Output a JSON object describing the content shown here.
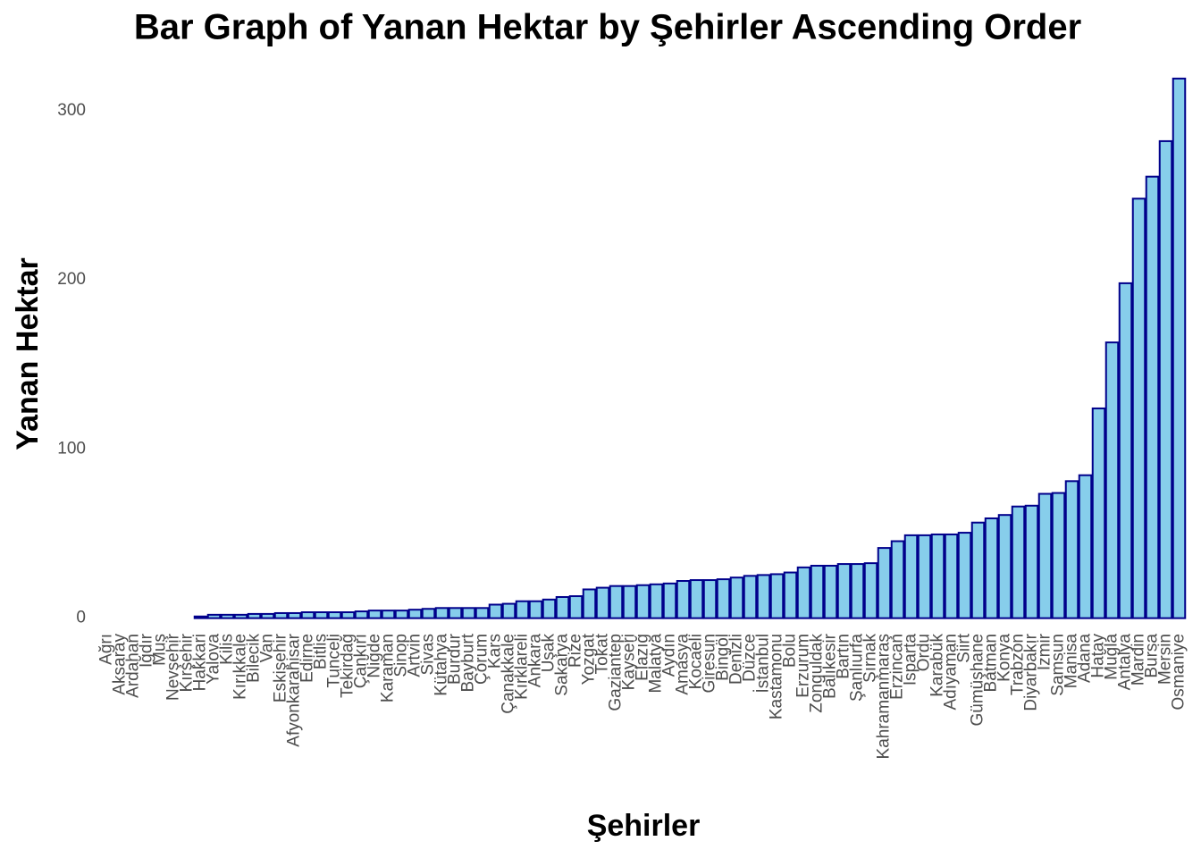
{
  "chart_data": {
    "type": "bar",
    "title": "Bar Graph of Yanan Hektar by Şehirler Ascending Order",
    "x_label": "Şehirler",
    "y_label": "Yanan Hektar",
    "categories": [
      "Ağrı",
      "Aksaray",
      "Ardahan",
      "Iğdır",
      "Muş",
      "Nevşehir",
      "Kırşehir",
      "Hakkari",
      "Yalova",
      "Kilis",
      "Kırıkkale",
      "Bilecik",
      "Van",
      "Eskişehir",
      "Afyonkarahisar",
      "Edirne",
      "Bitlis",
      "Tunceli",
      "Tekirdağ",
      "Çankırı",
      "Niğde",
      "Karaman",
      "Sinop",
      "Artvin",
      "Sivas",
      "Kütahya",
      "Burdur",
      "Bayburt",
      "Çorum",
      "Kars",
      "Çanakkale",
      "Kırklareli",
      "Ankara",
      "Uşak",
      "Sakarya",
      "Rize",
      "Yozgat",
      "Tokat",
      "Gaziantep",
      "Kayseri",
      "Elazığ",
      "Malatya",
      "Aydın",
      "Amasya",
      "Kocaeli",
      "Giresun",
      "Bingöl",
      "Denizli",
      "Düzce",
      "İstanbul",
      "Kastamonu",
      "Bolu",
      "Erzurum",
      "Zonguldak",
      "Balıkesir",
      "Bartın",
      "Şanlıurfa",
      "Şırnak",
      "Kahramanmaraş",
      "Erzincan",
      "Isparta",
      "Ordu",
      "Karabük",
      "Adıyaman",
      "Siirt",
      "Gümüşhane",
      "Batman",
      "Konya",
      "Trabzon",
      "Diyarbakır",
      "İzmir",
      "Samsun",
      "Manisa",
      "Adana",
      "Hatay",
      "Muğla",
      "Antalya",
      "Mardin",
      "Bursa",
      "Mersin",
      "Osmaniye"
    ],
    "values": [
      0,
      0,
      0,
      0,
      0,
      0,
      0,
      1,
      2,
      2,
      2,
      2.5,
      2.5,
      3,
      3,
      3.5,
      3.5,
      3.5,
      3.5,
      4,
      4.5,
      4.5,
      4.5,
      5,
      5.5,
      6,
      6,
      6,
      6,
      8,
      8.5,
      10,
      10,
      11,
      12.5,
      13,
      17,
      18,
      19,
      19,
      19.5,
      20,
      20.5,
      22,
      22.5,
      22.5,
      23,
      24,
      25,
      25.5,
      26,
      27,
      30,
      31,
      31,
      32,
      32,
      32.5,
      41.5,
      45.5,
      49,
      49,
      49.5,
      49.5,
      50.5,
      56.5,
      59,
      61,
      66,
      66.5,
      73.5,
      74,
      81,
      84.5,
      124,
      163,
      198,
      248,
      261,
      282,
      319
    ],
    "color": "#87ceeb",
    "edge_color": "#00008b",
    "ylim": [
      -6,
      320
    ],
    "yticks": [
      0,
      100,
      200,
      300
    ],
    "grid": false
  }
}
